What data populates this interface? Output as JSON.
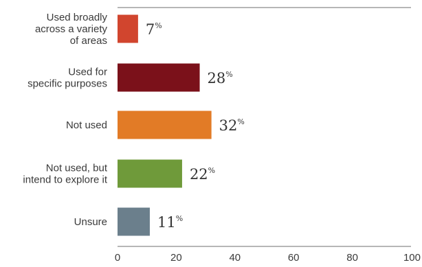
{
  "chart_data": {
    "type": "bar",
    "orientation": "horizontal",
    "categories": [
      "Used broadly across a variety of areas",
      "Used for specific purposes",
      "Not used",
      "Not used, but intend to explore it",
      "Unsure"
    ],
    "category_lines": [
      [
        "Used broadly",
        "across a variety",
        "of areas"
      ],
      [
        "Used for",
        "specific purposes"
      ],
      [
        "Not used"
      ],
      [
        "Not used, but",
        "intend to explore it"
      ],
      [
        "Unsure"
      ]
    ],
    "values": [
      7,
      28,
      32,
      22,
      11
    ],
    "value_suffix": "%",
    "colors": [
      "#d1452e",
      "#7b111a",
      "#e27b26",
      "#6f9a3a",
      "#6b7f8c"
    ],
    "xlim": [
      0,
      100
    ],
    "xticks": [
      0,
      20,
      40,
      60,
      80,
      100
    ],
    "title": "",
    "xlabel": "",
    "ylabel": "",
    "grid": false,
    "legend": "none"
  }
}
